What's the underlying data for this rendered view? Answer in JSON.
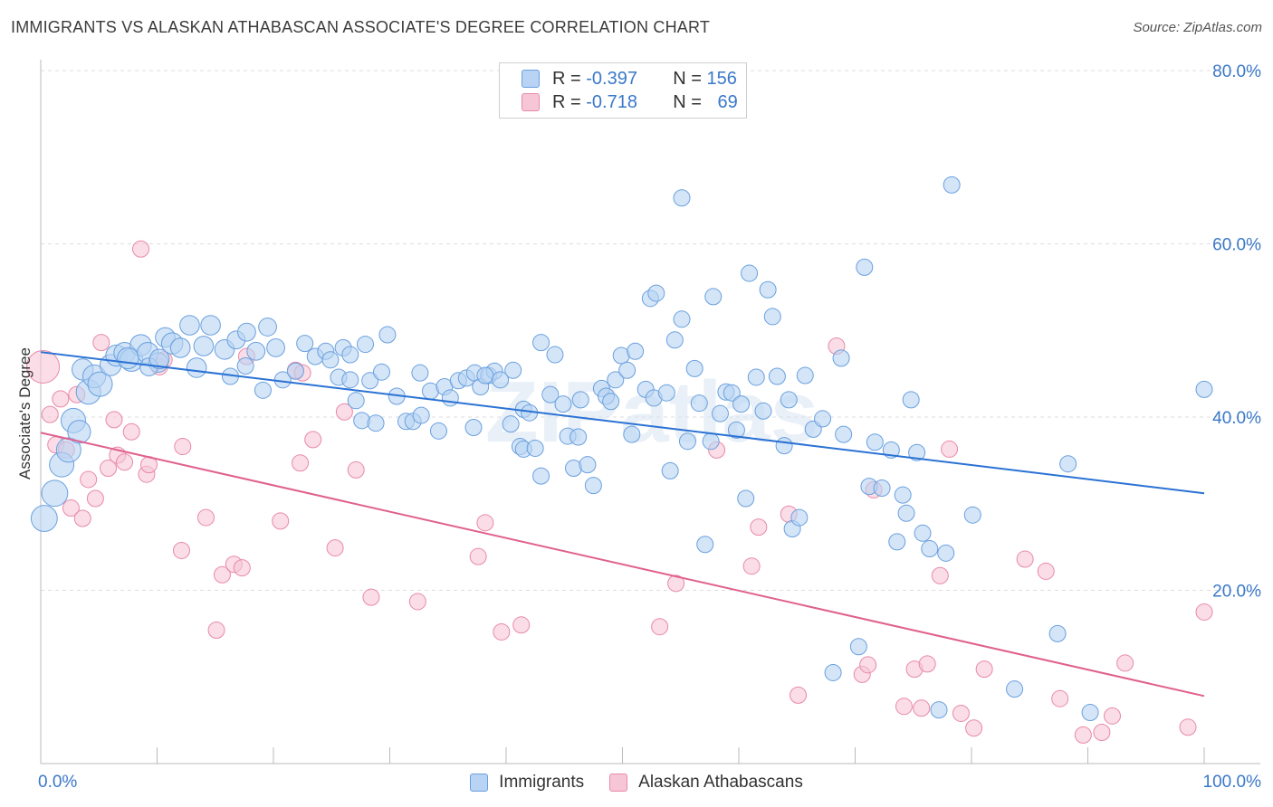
{
  "title": "IMMIGRANTS VS ALASKAN ATHABASCAN ASSOCIATE'S DEGREE CORRELATION CHART",
  "source": "Source: ZipAtlas.com",
  "watermark": "ZIPatlas",
  "legend": {
    "rows": [
      {
        "r_label": "R = ",
        "r_value": "-0.397",
        "n_label": "N = ",
        "n_value": "156"
      },
      {
        "r_label": "R = ",
        "r_value": "-0.718",
        "n_label": "N = ",
        "n_value": "69"
      }
    ]
  },
  "bottom_legend": [
    "Immigrants",
    "Alaskan Athabascans"
  ],
  "colors": {
    "blue_fill": "#b8d3f4",
    "blue_stroke": "#6aa0de",
    "blue_line": "#2a72d4",
    "pink_fill": "#f7c6d6",
    "pink_stroke": "#e98aa8",
    "pink_line": "#e0608e",
    "tick_text": "#3a78c9",
    "grid": "#dddddd"
  },
  "chart_data": {
    "type": "scatter",
    "title": "IMMIGRANTS VS ALASKAN ATHABASCAN ASSOCIATE'S DEGREE CORRELATION CHART",
    "xlabel": "",
    "ylabel": "Associate's Degree",
    "xlim": [
      0,
      100
    ],
    "ylim": [
      0,
      80
    ],
    "x_tick_labels": [
      "0.0%",
      "100.0%"
    ],
    "y_ticks": [
      20,
      40,
      60,
      80
    ],
    "y_tick_labels": [
      "20.0%",
      "40.0%",
      "60.0%",
      "80.0%"
    ],
    "grid": true,
    "series": [
      {
        "name": "Immigrants",
        "r": -0.397,
        "n": 156,
        "trend": {
          "x": [
            0,
            100
          ],
          "y": [
            47.5,
            31.2
          ]
        },
        "points": [
          [
            0.3,
            28.3,
            1.6
          ],
          [
            1.2,
            31.2,
            1.6
          ],
          [
            1.8,
            34.5,
            1.5
          ],
          [
            2.4,
            36.2,
            1.5
          ],
          [
            2.8,
            39.6,
            1.5
          ],
          [
            3.3,
            38.3,
            1.4
          ],
          [
            3.6,
            45.5,
            1.3
          ],
          [
            4.1,
            42.9,
            1.5
          ],
          [
            4.6,
            44.7,
            1.4
          ],
          [
            5.1,
            43.8,
            1.5
          ],
          [
            6.0,
            46.0,
            1.3
          ],
          [
            6.5,
            47.1,
            1.3
          ],
          [
            7.2,
            47.4,
            1.3
          ],
          [
            7.8,
            46.6,
            1.4
          ],
          [
            8.6,
            48.3,
            1.3
          ],
          [
            9.2,
            47.4,
            1.3
          ],
          [
            10.1,
            46.3,
            1.2
          ],
          [
            10.7,
            49.2,
            1.2
          ],
          [
            11.3,
            48.5,
            1.3
          ],
          [
            12.0,
            48.0,
            1.2
          ],
          [
            12.8,
            50.6,
            1.2
          ],
          [
            13.4,
            45.7,
            1.2
          ],
          [
            14.0,
            48.2,
            1.2
          ],
          [
            14.6,
            50.6,
            1.2
          ],
          [
            15.8,
            47.8,
            1.2
          ],
          [
            16.8,
            48.9,
            1.1
          ],
          [
            17.7,
            49.8,
            1.1
          ],
          [
            18.5,
            47.6,
            1.1
          ],
          [
            19.5,
            50.4,
            1.1
          ],
          [
            20.2,
            48.0,
            1.1
          ],
          [
            7.5,
            46.8,
            1.3
          ],
          [
            9.3,
            45.8,
            1.1
          ],
          [
            10.2,
            46.7,
            1.2
          ],
          [
            16.3,
            44.7,
            1.0
          ],
          [
            17.6,
            45.9,
            1.0
          ],
          [
            19.1,
            43.1,
            1.0
          ],
          [
            20.8,
            44.3,
            1.0
          ],
          [
            21.9,
            45.3,
            1.0
          ],
          [
            22.7,
            48.5,
            1.0
          ],
          [
            23.6,
            47.0,
            1.0
          ],
          [
            24.5,
            47.6,
            1.0
          ],
          [
            24.9,
            46.6,
            1.0
          ],
          [
            25.6,
            44.6,
            1.0
          ],
          [
            26.6,
            44.3,
            1.0
          ],
          [
            26.0,
            48.0,
            1.0
          ],
          [
            26.6,
            47.2,
            1.0
          ],
          [
            27.9,
            48.4,
            1.0
          ],
          [
            28.3,
            44.2,
            1.0
          ],
          [
            29.3,
            45.2,
            1.0
          ],
          [
            27.1,
            41.9,
            1.0
          ],
          [
            27.6,
            39.6,
            1.0
          ],
          [
            28.8,
            39.3,
            1.0
          ],
          [
            29.8,
            49.5,
            1.0
          ],
          [
            30.6,
            42.4,
            1.0
          ],
          [
            31.4,
            39.5,
            1.0
          ],
          [
            32.0,
            39.5,
            1.0
          ],
          [
            32.6,
            45.1,
            1.0
          ],
          [
            32.7,
            40.2,
            1.0
          ],
          [
            33.5,
            43.0,
            1.0
          ],
          [
            34.2,
            38.4,
            1.0
          ],
          [
            34.7,
            43.5,
            1.0
          ],
          [
            35.2,
            42.2,
            1.0
          ],
          [
            35.9,
            44.2,
            1.0
          ],
          [
            36.6,
            44.5,
            1.0
          ],
          [
            37.3,
            45.1,
            1.0
          ],
          [
            37.8,
            43.5,
            1.0
          ],
          [
            37.2,
            38.8,
            1.0
          ],
          [
            38.5,
            44.8,
            1.0
          ],
          [
            39.0,
            45.3,
            1.0
          ],
          [
            38.2,
            44.8,
            1.0
          ],
          [
            39.5,
            44.3,
            1.0
          ],
          [
            40.4,
            39.2,
            1.0
          ],
          [
            41.2,
            36.6,
            1.0
          ],
          [
            41.5,
            36.3,
            1.0
          ],
          [
            40.6,
            45.4,
            1.0
          ],
          [
            41.5,
            40.9,
            1.0
          ],
          [
            42.5,
            36.4,
            1.0
          ],
          [
            43.0,
            33.2,
            1.0
          ],
          [
            43.0,
            48.6,
            1.0
          ],
          [
            43.8,
            42.6,
            1.0
          ],
          [
            44.2,
            47.2,
            1.0
          ],
          [
            44.9,
            41.5,
            1.0
          ],
          [
            45.3,
            37.8,
            1.0
          ],
          [
            45.8,
            34.1,
            1.0
          ],
          [
            46.2,
            37.7,
            1.0
          ],
          [
            46.4,
            42.0,
            1.0
          ],
          [
            47.0,
            34.5,
            1.0
          ],
          [
            47.5,
            32.1,
            1.0
          ],
          [
            48.2,
            43.3,
            1.0
          ],
          [
            48.6,
            42.4,
            1.0
          ],
          [
            49.0,
            41.8,
            1.0
          ],
          [
            49.4,
            44.3,
            1.0
          ],
          [
            49.9,
            47.1,
            1.0
          ],
          [
            50.4,
            45.4,
            1.0
          ],
          [
            50.8,
            38.0,
            1.0
          ],
          [
            51.1,
            47.6,
            1.0
          ],
          [
            52.0,
            43.2,
            1.0
          ],
          [
            52.4,
            53.7,
            1.0
          ],
          [
            52.9,
            54.3,
            1.0
          ],
          [
            52.7,
            42.2,
            1.0
          ],
          [
            53.8,
            42.8,
            1.0
          ],
          [
            54.1,
            33.8,
            1.0
          ],
          [
            54.5,
            48.9,
            1.0
          ],
          [
            55.1,
            51.3,
            1.0
          ],
          [
            55.6,
            37.2,
            1.0
          ],
          [
            55.1,
            65.3,
            1.0
          ],
          [
            56.2,
            45.6,
            1.0
          ],
          [
            56.6,
            41.6,
            1.0
          ],
          [
            57.1,
            25.3,
            1.0
          ],
          [
            57.6,
            37.2,
            1.0
          ],
          [
            57.8,
            53.9,
            1.0
          ],
          [
            58.4,
            40.4,
            1.0
          ],
          [
            58.9,
            42.9,
            1.0
          ],
          [
            59.4,
            42.8,
            1.0
          ],
          [
            59.8,
            38.5,
            1.0
          ],
          [
            60.2,
            41.5,
            1.0
          ],
          [
            60.6,
            30.6,
            1.0
          ],
          [
            60.9,
            56.6,
            1.0
          ],
          [
            61.5,
            44.6,
            1.0
          ],
          [
            62.1,
            40.7,
            1.0
          ],
          [
            62.5,
            54.7,
            1.0
          ],
          [
            62.9,
            51.6,
            1.0
          ],
          [
            63.3,
            44.7,
            1.0
          ],
          [
            63.9,
            36.7,
            1.0
          ],
          [
            64.3,
            42.0,
            1.0
          ],
          [
            64.6,
            27.1,
            1.0
          ],
          [
            65.2,
            28.4,
            1.0
          ],
          [
            65.7,
            44.8,
            1.0
          ],
          [
            66.4,
            38.6,
            1.0
          ],
          [
            67.2,
            39.8,
            1.0
          ],
          [
            68.1,
            10.5,
            1.0
          ],
          [
            68.8,
            46.8,
            1.0
          ],
          [
            69.0,
            38.0,
            1.0
          ],
          [
            70.3,
            13.5,
            1.0
          ],
          [
            70.8,
            57.3,
            1.0
          ],
          [
            71.2,
            32.0,
            1.0
          ],
          [
            71.7,
            37.1,
            1.0
          ],
          [
            72.3,
            31.8,
            1.0
          ],
          [
            73.1,
            36.2,
            1.0
          ],
          [
            73.6,
            25.6,
            1.0
          ],
          [
            74.1,
            31.0,
            1.0
          ],
          [
            74.4,
            28.9,
            1.0
          ],
          [
            74.8,
            42.0,
            1.0
          ],
          [
            75.3,
            35.9,
            1.0
          ],
          [
            75.8,
            26.6,
            1.0
          ],
          [
            76.4,
            24.8,
            1.0
          ],
          [
            77.2,
            6.2,
            1.0
          ],
          [
            77.8,
            24.3,
            1.0
          ],
          [
            78.3,
            66.8,
            1.0
          ],
          [
            80.1,
            28.7,
            1.0
          ],
          [
            83.7,
            8.6,
            1.0
          ],
          [
            87.4,
            15.0,
            1.0
          ],
          [
            88.3,
            34.6,
            1.0
          ],
          [
            90.2,
            5.9,
            1.0
          ],
          [
            100.0,
            43.2,
            1.0
          ],
          [
            42.0,
            40.5,
            1.0
          ]
        ]
      },
      {
        "name": "Alaskan Athabascans",
        "r": -0.718,
        "n": 69,
        "trend": {
          "x": [
            0,
            100
          ],
          "y": [
            38.2,
            7.8
          ]
        },
        "points": [
          [
            0.2,
            45.8,
            2.0
          ],
          [
            0.8,
            40.3,
            1.0
          ],
          [
            1.3,
            36.8,
            1.0
          ],
          [
            1.7,
            42.1,
            1.0
          ],
          [
            2.2,
            36.2,
            1.0
          ],
          [
            2.6,
            29.5,
            1.0
          ],
          [
            3.1,
            42.6,
            1.0
          ],
          [
            3.6,
            28.3,
            1.0
          ],
          [
            4.1,
            32.8,
            1.0
          ],
          [
            4.7,
            30.6,
            1.0
          ],
          [
            5.2,
            48.6,
            1.0
          ],
          [
            5.8,
            34.1,
            1.0
          ],
          [
            6.3,
            39.7,
            1.0
          ],
          [
            6.6,
            35.6,
            1.0
          ],
          [
            7.2,
            34.8,
            1.0
          ],
          [
            7.8,
            38.3,
            1.0
          ],
          [
            8.6,
            59.4,
            1.0
          ],
          [
            9.1,
            33.4,
            1.0
          ],
          [
            9.3,
            34.5,
            1.0
          ],
          [
            10.2,
            45.8,
            1.0
          ],
          [
            10.6,
            46.6,
            1.0
          ],
          [
            12.1,
            24.6,
            1.0
          ],
          [
            12.2,
            36.6,
            1.0
          ],
          [
            14.2,
            28.4,
            1.0
          ],
          [
            15.1,
            15.4,
            1.0
          ],
          [
            15.6,
            21.8,
            1.0
          ],
          [
            16.6,
            23.0,
            1.0
          ],
          [
            17.3,
            22.6,
            1.0
          ],
          [
            17.7,
            47.0,
            1.0
          ],
          [
            20.6,
            28.0,
            1.0
          ],
          [
            21.9,
            45.4,
            1.0
          ],
          [
            22.5,
            45.1,
            1.0
          ],
          [
            22.3,
            34.7,
            1.0
          ],
          [
            23.4,
            37.4,
            1.0
          ],
          [
            25.3,
            24.9,
            1.0
          ],
          [
            26.1,
            40.6,
            1.0
          ],
          [
            27.1,
            33.9,
            1.0
          ],
          [
            28.4,
            19.2,
            1.0
          ],
          [
            32.4,
            18.7,
            1.0
          ],
          [
            37.6,
            23.9,
            1.0
          ],
          [
            38.2,
            27.8,
            1.0
          ],
          [
            39.6,
            15.2,
            1.0
          ],
          [
            41.3,
            16.0,
            1.0
          ],
          [
            53.2,
            15.8,
            1.0
          ],
          [
            54.6,
            20.8,
            1.0
          ],
          [
            58.1,
            36.2,
            1.0
          ],
          [
            61.1,
            22.8,
            1.0
          ],
          [
            61.7,
            27.3,
            1.0
          ],
          [
            64.3,
            28.8,
            1.0
          ],
          [
            65.1,
            7.9,
            1.0
          ],
          [
            68.4,
            48.2,
            1.0
          ],
          [
            70.6,
            10.3,
            1.0
          ],
          [
            71.1,
            11.4,
            1.0
          ],
          [
            71.6,
            31.6,
            1.0
          ],
          [
            74.2,
            6.6,
            1.0
          ],
          [
            75.1,
            10.9,
            1.0
          ],
          [
            75.7,
            6.4,
            1.0
          ],
          [
            76.2,
            11.5,
            1.0
          ],
          [
            77.3,
            21.7,
            1.0
          ],
          [
            78.1,
            36.3,
            1.0
          ],
          [
            79.1,
            5.8,
            1.0
          ],
          [
            80.2,
            4.1,
            1.0
          ],
          [
            81.1,
            10.9,
            1.0
          ],
          [
            84.6,
            23.6,
            1.0
          ],
          [
            86.4,
            22.2,
            1.0
          ],
          [
            87.6,
            7.5,
            1.0
          ],
          [
            89.6,
            3.3,
            1.0
          ],
          [
            91.2,
            3.6,
            1.0
          ],
          [
            92.1,
            5.5,
            1.0
          ],
          [
            93.2,
            11.6,
            1.0
          ],
          [
            98.6,
            4.2,
            1.0
          ],
          [
            100.0,
            17.5,
            1.0
          ]
        ]
      }
    ]
  }
}
